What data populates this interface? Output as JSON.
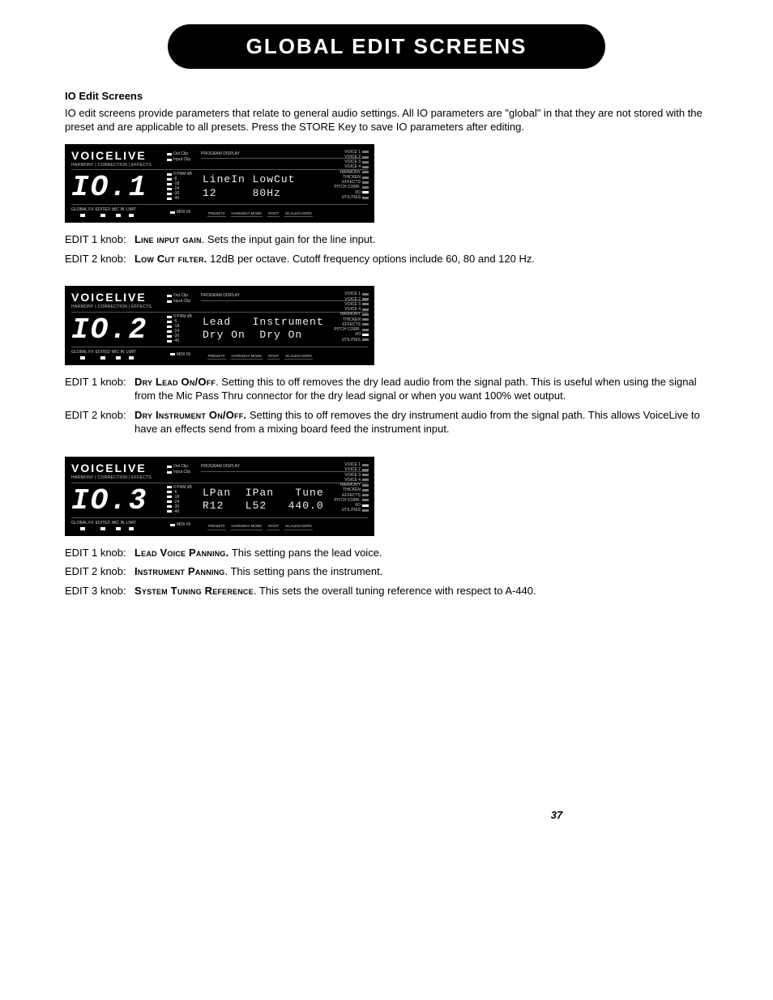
{
  "title": "GLOBAL EDIT SCREENS",
  "section_heading": "IO Edit Screens",
  "intro": "IO edit screens provide parameters that relate to general audio settings. All IO parameters are \"global\" in that they are not stored with the preset and are applicable to all presets. Press the STORE Key to  save IO parameters after editing.",
  "page_number": "37",
  "lcd_common": {
    "brand": "VOICELIVE",
    "brand_sub": "HARMONY | CORRECTION | EFFECTS",
    "clip_labels": [
      "Out Clip",
      "Input Clip"
    ],
    "meter_labels": [
      "0  PRM dB",
      "-6",
      "-18",
      "-24",
      "-30",
      "-40"
    ],
    "midi_label": "MIDI IN",
    "prog_label": "PROGRAM DISPLAY",
    "bottom_buttons": [
      "GLOBAL FX",
      "EDITED",
      "MIC IN",
      "LIMIT"
    ],
    "param_tabs": [
      "PRESET#",
      "HARMONY MODE",
      "ROOT",
      "SCALE/CHORD"
    ],
    "side_labels": [
      "VOICE 1",
      "VOICE 2",
      "VOICE 3",
      "VOICE 4",
      "HARMONY",
      "THICKEN",
      "EFFECTS",
      "PITCH CORR.",
      "I/O",
      "UTILITIES"
    ],
    "side_highlight_index": 8
  },
  "screens": [
    {
      "seg": "IO.1",
      "line1": "LineIn LowCut",
      "line2": "12     80Hz",
      "knobs": [
        {
          "label": "EDIT 1 knob:",
          "param": "Line input gain",
          "desc": ".  Sets the input gain for the line input."
        },
        {
          "label": "EDIT 2 knob:",
          "param": "Low Cut filter.",
          "desc": " 12dB per octave. Cutoff frequency options include 60, 80 and 120 Hz."
        }
      ]
    },
    {
      "seg": "IO.2",
      "line1": "Lead   Instrument",
      "line2": "Dry On  Dry On",
      "knobs": [
        {
          "label": "EDIT 1 knob:",
          "param": "Dry Lead On/Off",
          "desc": ".  Setting this to off removes the dry lead audio from the signal path.  This is useful when using the signal from the Mic Pass Thru connector for the dry lead signal or when you want 100% wet output."
        },
        {
          "label": "EDIT 2 knob:",
          "param": "Dry Instrument On/Off.",
          "desc": " Setting this to off removes the dry instrument audio from the signal path. This allows VoiceLive to have an effects send from a mixing board feed the instrument input."
        }
      ]
    },
    {
      "seg": "IO.3",
      "line1": "LPan  IPan   Tune",
      "line2": "R12   L52   440.0",
      "knobs": [
        {
          "label": "EDIT 1 knob:",
          "param": "Lead Voice Panning.",
          "desc": "  This setting pans the lead voice."
        },
        {
          "label": "EDIT 2 knob:",
          "param": "Instrument Panning",
          "desc": ".  This setting pans the instrument."
        },
        {
          "label": "EDIT 3 knob:",
          "param": "System Tuning Reference",
          "desc": ".  This sets the overall tuning reference with respect to A-440."
        }
      ]
    }
  ]
}
